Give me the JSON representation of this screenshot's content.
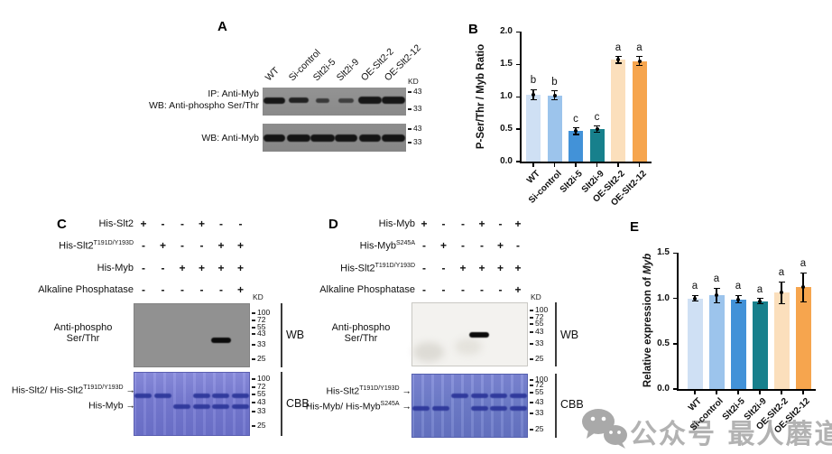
{
  "watermark": {
    "icon": "wechat-icon",
    "text": "公众号 最人蘑道",
    "color": "#b2b2b2"
  },
  "figure": {
    "panel_a": {
      "letter": "A",
      "ip_line": "IP: Anti-Myb",
      "wb_line": "WB: Anti-phospho Ser/Thr",
      "wb2_label": "WB: Anti-Myb",
      "kd": "KD",
      "lanes": [
        "WT",
        "Si-control",
        "Slt2i-5",
        "Slt2i-9",
        "OE-Slt2-2",
        "OE-Slt2-12"
      ],
      "blot1": {
        "markers": [
          "43",
          "33"
        ],
        "bands": [
          [
            24,
            7,
            1
          ],
          [
            22,
            6,
            0.9
          ],
          [
            15,
            5,
            0.7
          ],
          [
            17,
            5,
            0.65
          ],
          [
            26,
            8,
            1
          ],
          [
            26,
            8,
            1
          ]
        ]
      },
      "blot2": {
        "markers": [
          "43",
          "33"
        ],
        "bands": [
          [
            24,
            8,
            1
          ],
          [
            26,
            8,
            1
          ],
          [
            27,
            8,
            1
          ],
          [
            25,
            8,
            1
          ],
          [
            24,
            8,
            1
          ],
          [
            26,
            8,
            1
          ]
        ]
      }
    },
    "panel_b": {
      "letter": "B"
    },
    "panel_c": {
      "letter": "C",
      "kd": "KD",
      "arrow_glyph": "→",
      "rows": [
        {
          "label": "His-Slt2",
          "sup": "",
          "values": [
            "+",
            "-",
            "-",
            "+",
            "-",
            "-"
          ]
        },
        {
          "label": "His-Slt2",
          "sup": "T191D/Y193D",
          "values": [
            "-",
            "+",
            "-",
            "-",
            "+",
            "+"
          ]
        },
        {
          "label": "His-Myb",
          "sup": "",
          "values": [
            "-",
            "-",
            "+",
            "+",
            "+",
            "+"
          ]
        },
        {
          "label": "Alkaline Phosphatase",
          "sup": "",
          "values": [
            "-",
            "-",
            "-",
            "-",
            "-",
            "+"
          ]
        }
      ],
      "wb": {
        "tag": "WB",
        "label_line1": "Anti-phospho",
        "label_line2": "Ser/Thr",
        "markers": [
          "100",
          "72",
          "55",
          "43",
          "33",
          "25"
        ],
        "band_lanes": [
          5
        ]
      },
      "cbb": {
        "tag": "CBB",
        "markers": [
          "100",
          "72",
          "55",
          "43",
          "33",
          "25"
        ],
        "upper_label": "His-Slt2/ His-Slt2",
        "upper_label_sup": "T191D/Y193D",
        "lower_label": "His-Myb",
        "lower_label_sup": "",
        "upper_band_lanes": [
          1,
          2,
          4,
          5,
          6
        ],
        "lower_band_lanes": [
          3,
          4,
          5,
          6
        ]
      }
    },
    "panel_d": {
      "letter": "D",
      "kd": "KD",
      "arrow_glyph": "→",
      "rows": [
        {
          "label": "His-Myb",
          "sup": "",
          "values": [
            "+",
            "-",
            "-",
            "+",
            "-",
            "+"
          ]
        },
        {
          "label": "His-Myb",
          "sup": "S245A",
          "values": [
            "-",
            "+",
            "-",
            "-",
            "+",
            "-"
          ]
        },
        {
          "label": "His-Slt2",
          "sup": "T191D/Y193D",
          "values": [
            "-",
            "-",
            "+",
            "+",
            "+",
            "+"
          ]
        },
        {
          "label": "Alkaline Phosphatase",
          "sup": "",
          "values": [
            "-",
            "-",
            "-",
            "-",
            "-",
            "+"
          ]
        }
      ],
      "wb": {
        "tag": "WB",
        "label_line1": "Anti-phospho",
        "label_line2": "Ser/Thr",
        "markers": [
          "100",
          "72",
          "55",
          "43",
          "33",
          "25"
        ],
        "band_lanes": [
          4
        ]
      },
      "cbb": {
        "tag": "CBB",
        "markers": [
          "100",
          "72",
          "55",
          "43",
          "33",
          "25"
        ],
        "upper_label": "His-Slt2",
        "upper_label_sup": "T191D/Y193D",
        "lower_label": "His-Myb/ His-Myb",
        "lower_label_sup": "S245A",
        "upper_band_lanes": [
          3,
          4,
          5,
          6
        ],
        "lower_band_lanes": [
          1,
          2,
          4,
          5,
          6
        ]
      }
    },
    "panel_e": {
      "letter": "E",
      "ylabel_prefix": "Relative expression of ",
      "ylabel_italic": "Myb"
    }
  },
  "chart_data": [
    {
      "id": "panel_b",
      "type": "bar",
      "title": "",
      "xlabel": "",
      "ylabel": "P-Ser/Thr / Myb Ratio",
      "categories": [
        "WT",
        "Si-control",
        "Slt2i-5",
        "Slt2i-9",
        "OE-Slt2-2",
        "OE-Slt2-12"
      ],
      "values": [
        1.03,
        1.02,
        0.47,
        0.5,
        1.57,
        1.55
      ],
      "errors": [
        0.08,
        0.07,
        0.05,
        0.05,
        0.05,
        0.07
      ],
      "sig_letters": [
        "b",
        "b",
        "c",
        "c",
        "a",
        "a"
      ],
      "ylim": [
        0,
        2.0
      ],
      "yticks": [
        "0.0",
        "0.5",
        "1.0",
        "1.5",
        "2.0"
      ],
      "grid": false,
      "legend": "none",
      "bar_colors": [
        "#cfe0f4",
        "#9cc4ec",
        "#4292d8",
        "#17808c",
        "#fbdfbc",
        "#f6a54e"
      ]
    },
    {
      "id": "panel_e",
      "type": "bar",
      "title": "",
      "xlabel": "",
      "ylabel": "Relative expression of Myb",
      "categories": [
        "WT",
        "Si-control",
        "Slt2i-5",
        "Slt2i-9",
        "OE-Slt2-2",
        "OE-Slt2-12"
      ],
      "values": [
        1.0,
        1.03,
        0.99,
        0.97,
        1.06,
        1.12
      ],
      "errors": [
        0.03,
        0.08,
        0.04,
        0.03,
        0.12,
        0.16
      ],
      "sig_letters": [
        "a",
        "a",
        "a",
        "a",
        "a",
        "a"
      ],
      "ylim": [
        0,
        1.5
      ],
      "yticks": [
        "0.0",
        "0.5",
        "1.0",
        "1.5"
      ],
      "grid": false,
      "legend": "none",
      "bar_colors": [
        "#cfe0f4",
        "#9cc4ec",
        "#4292d8",
        "#17808c",
        "#fbdfbc",
        "#f6a54e"
      ]
    }
  ]
}
